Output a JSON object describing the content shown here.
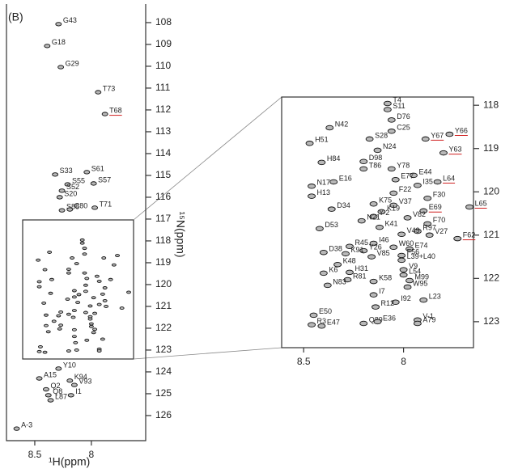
{
  "panel_label": "(B)",
  "x_label": "¹H(ppm)",
  "y_label": "¹⁵N(ppm)",
  "chart_data": [
    {
      "type": "scatter",
      "xlim": [
        8.75,
        7.52
      ],
      "ylim": [
        107.15,
        127.15
      ],
      "xticks": [
        8.5,
        8
      ],
      "yticks": [
        108,
        109,
        110,
        111,
        112,
        113,
        114,
        115,
        116,
        117,
        118,
        119,
        120,
        121,
        122,
        123,
        124,
        125,
        126
      ],
      "peak_color": "#b8b8b8",
      "underline_color": "#d02020",
      "points": [
        {
          "label": "G43",
          "x": 8.29,
          "y": 108.07
        },
        {
          "label": "G18",
          "x": 8.39,
          "y": 109.07
        },
        {
          "label": "G29",
          "x": 8.27,
          "y": 110.04
        },
        {
          "label": "T73",
          "x": 7.94,
          "y": 111.19
        },
        {
          "label": "T68",
          "x": 7.88,
          "y": 112.19,
          "underline": true
        },
        {
          "label": "S33",
          "x": 8.32,
          "y": 114.96
        },
        {
          "label": "S61",
          "x": 8.04,
          "y": 114.85
        },
        {
          "label": "S57",
          "x": 7.98,
          "y": 115.37
        },
        {
          "label": "S55",
          "x": 8.21,
          "y": 115.41
        },
        {
          "label": "S52",
          "x": 8.26,
          "y": 115.7
        },
        {
          "label": "S20",
          "x": 8.28,
          "y": 116.0
        },
        {
          "label": "S88",
          "x": 8.26,
          "y": 116.6
        },
        {
          "label": "C80",
          "x": 8.19,
          "y": 116.56
        },
        {
          "label": "T71",
          "x": 7.97,
          "y": 116.48
        },
        {
          "label": "Y10",
          "x": 8.29,
          "y": 123.85
        },
        {
          "label": "A15",
          "x": 8.46,
          "y": 124.3
        },
        {
          "label": "K94",
          "x": 8.19,
          "y": 124.4
        },
        {
          "label": "V93",
          "x": 8.15,
          "y": 124.6
        },
        {
          "label": "Q2",
          "x": 8.4,
          "y": 124.8
        },
        {
          "label": "Q8",
          "x": 8.38,
          "y": 125.07
        },
        {
          "label": "I1",
          "x": 8.18,
          "y": 125.07
        },
        {
          "label": "L87",
          "x": 8.36,
          "y": 125.3
        },
        {
          "label": "A-3",
          "x": 8.66,
          "y": 126.6
        }
      ]
    },
    {
      "type": "scatter",
      "xlim": [
        8.61,
        7.65
      ],
      "ylim": [
        117.81,
        123.6
      ],
      "xticks": [
        8.5,
        8
      ],
      "yticks": [
        118,
        119,
        120,
        121,
        122,
        123
      ],
      "peak_color": "#b8b8b8",
      "underline_color": "#d02020",
      "points": [
        {
          "label": "T4",
          "x": 8.08,
          "y": 117.96
        },
        {
          "label": "S11",
          "x": 8.08,
          "y": 118.1
        },
        {
          "label": "D76",
          "x": 8.06,
          "y": 118.34
        },
        {
          "label": "N42",
          "x": 8.37,
          "y": 118.52
        },
        {
          "label": "C25",
          "x": 8.06,
          "y": 118.6
        },
        {
          "label": "S28",
          "x": 8.17,
          "y": 118.78
        },
        {
          "label": "Y67",
          "x": 7.89,
          "y": 118.78,
          "underline": true
        },
        {
          "label": "Y66",
          "x": 7.77,
          "y": 118.67,
          "underline": true
        },
        {
          "label": "H51",
          "x": 8.47,
          "y": 118.88
        },
        {
          "label": "N24",
          "x": 8.13,
          "y": 119.04
        },
        {
          "label": "Y63",
          "x": 7.8,
          "y": 119.1,
          "underline": true
        },
        {
          "label": "D98",
          "x": 8.2,
          "y": 119.3
        },
        {
          "label": "H84",
          "x": 8.41,
          "y": 119.32
        },
        {
          "label": "Y78",
          "x": 8.06,
          "y": 119.47
        },
        {
          "label": "T86",
          "x": 8.2,
          "y": 119.47
        },
        {
          "label": "E44",
          "x": 7.95,
          "y": 119.62
        },
        {
          "label": "L64",
          "x": 7.83,
          "y": 119.77,
          "underline": true
        },
        {
          "label": "I35",
          "x": 7.93,
          "y": 119.85
        },
        {
          "label": "E77",
          "x": 8.04,
          "y": 119.72
        },
        {
          "label": "N17",
          "x": 8.46,
          "y": 119.87
        },
        {
          "label": "E16",
          "x": 8.35,
          "y": 119.77
        },
        {
          "label": "F22",
          "x": 8.05,
          "y": 120.03
        },
        {
          "label": "F30",
          "x": 7.88,
          "y": 120.15
        },
        {
          "label": "H13",
          "x": 8.46,
          "y": 120.1
        },
        {
          "label": "L65",
          "x": 7.67,
          "y": 120.35,
          "underline": true
        },
        {
          "label": "K75",
          "x": 8.15,
          "y": 120.28
        },
        {
          "label": "V37",
          "x": 8.05,
          "y": 120.31
        },
        {
          "label": "D34",
          "x": 8.36,
          "y": 120.4
        },
        {
          "label": "E69",
          "x": 7.9,
          "y": 120.44,
          "underline": true
        },
        {
          "label": "K19",
          "x": 8.11,
          "y": 120.46
        },
        {
          "label": "V82",
          "x": 7.98,
          "y": 120.6
        },
        {
          "label": "Y-2",
          "x": 8.15,
          "y": 120.57
        },
        {
          "label": "N21",
          "x": 8.21,
          "y": 120.67
        },
        {
          "label": "F70",
          "x": 7.88,
          "y": 120.74
        },
        {
          "label": "K41",
          "x": 8.12,
          "y": 120.82
        },
        {
          "label": "R97",
          "x": 7.93,
          "y": 120.91
        },
        {
          "label": "D53",
          "x": 8.42,
          "y": 120.85
        },
        {
          "label": "V49",
          "x": 8.01,
          "y": 120.98
        },
        {
          "label": "V27",
          "x": 7.87,
          "y": 121.0
        },
        {
          "label": "F62",
          "x": 7.73,
          "y": 121.08,
          "underline": true
        },
        {
          "label": "I46",
          "x": 8.15,
          "y": 121.19
        },
        {
          "label": "R45",
          "x": 8.27,
          "y": 121.26
        },
        {
          "label": "Y26",
          "x": 8.2,
          "y": 121.36
        },
        {
          "label": "E74",
          "x": 7.97,
          "y": 121.32
        },
        {
          "label": "W60",
          "x": 8.05,
          "y": 121.28
        },
        {
          "label": "F56",
          "x": 8.01,
          "y": 121.47
        },
        {
          "label": "D38",
          "x": 8.4,
          "y": 121.4
        },
        {
          "label": "K91",
          "x": 8.29,
          "y": 121.43
        },
        {
          "label": "V85",
          "x": 8.16,
          "y": 121.5
        },
        {
          "label": "L39+L40",
          "x": 8.01,
          "y": 121.58
        },
        {
          "label": "K48",
          "x": 8.33,
          "y": 121.68
        },
        {
          "label": "V9",
          "x": 8.0,
          "y": 121.8
        },
        {
          "label": "K6",
          "x": 8.4,
          "y": 121.88
        },
        {
          "label": "H31",
          "x": 8.27,
          "y": 121.86
        },
        {
          "label": "L54",
          "x": 8.0,
          "y": 121.92
        },
        {
          "label": "R81",
          "x": 8.28,
          "y": 122.03
        },
        {
          "label": "K58",
          "x": 8.15,
          "y": 122.07
        },
        {
          "label": "M99",
          "x": 7.97,
          "y": 122.05
        },
        {
          "label": "N83",
          "x": 8.38,
          "y": 122.16
        },
        {
          "label": "W95",
          "x": 7.98,
          "y": 122.2
        },
        {
          "label": "I7",
          "x": 8.15,
          "y": 122.38
        },
        {
          "label": "L23",
          "x": 7.9,
          "y": 122.5
        },
        {
          "label": "I92",
          "x": 8.04,
          "y": 122.55
        },
        {
          "label": "R12",
          "x": 8.14,
          "y": 122.66
        },
        {
          "label": "E50",
          "x": 8.45,
          "y": 122.85
        },
        {
          "label": "V-1",
          "x": 7.93,
          "y": 122.96
        },
        {
          "label": "Q89",
          "x": 8.2,
          "y": 123.04
        },
        {
          "label": "A79",
          "x": 7.93,
          "y": 123.04
        },
        {
          "label": "R3",
          "x": 8.46,
          "y": 123.07
        },
        {
          "label": "E36",
          "x": 8.13,
          "y": 123.0
        },
        {
          "label": "E47",
          "x": 8.41,
          "y": 123.1
        }
      ]
    }
  ]
}
